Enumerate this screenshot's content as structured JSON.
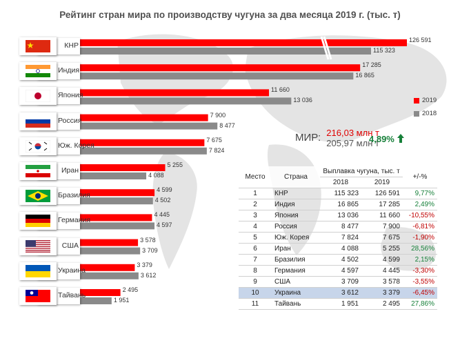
{
  "title": "Рейтинг стран мира по производству чугуна за два месяца 2019 г. (тыс. т)",
  "colors": {
    "bar2019": "#ff0000",
    "bar2018": "#8a8a8a",
    "positive": "#17803a",
    "negative": "#c00000",
    "highlight_row": "#c7d5ea"
  },
  "chart_data": {
    "type": "bar",
    "orientation": "horizontal",
    "categories": [
      "КНР",
      "Индия",
      "Япония",
      "Россия",
      "Юж. Корея",
      "Иран",
      "Бразилия",
      "Германия",
      "США",
      "Украина",
      "Тайвань"
    ],
    "series": [
      {
        "name": "2019",
        "values": [
          126591,
          17285,
          11660,
          7900,
          7675,
          5255,
          4599,
          4445,
          3578,
          3379,
          2495
        ],
        "labels": [
          "126 591",
          "17 285",
          "11 660",
          "7 900",
          "7 675",
          "5 255",
          "4 599",
          "4 445",
          "3 578",
          "3 379",
          "2 495"
        ]
      },
      {
        "name": "2018",
        "values": [
          115323,
          16865,
          13036,
          8477,
          7824,
          4088,
          4502,
          4597,
          3709,
          3612,
          1951
        ],
        "labels": [
          "115 323",
          "16 865",
          "13 036",
          "8 477",
          "7 824",
          "4 088",
          "4 502",
          "4 597",
          "3 709",
          "3 612",
          "1 951"
        ]
      }
    ],
    "legend": {
      "position": "right",
      "items": [
        "2019",
        "2018"
      ]
    },
    "broken_axis_first_bar": true
  },
  "flags": [
    "china-flag-icon",
    "india-flag-icon",
    "japan-flag-icon",
    "russia-flag-icon",
    "south-korea-flag-icon",
    "iran-flag-icon",
    "brazil-flag-icon",
    "germany-flag-icon",
    "usa-flag-icon",
    "ukraine-flag-icon",
    "taiwan-flag-icon"
  ],
  "world": {
    "label": "МИР:",
    "v2019": "216,03 млн т",
    "v2018": "205,97 млн т",
    "change": "4,89%"
  },
  "table": {
    "headers": [
      "Место",
      "Страна",
      "Выплавка чугуна, тыс. т",
      "+/-%"
    ],
    "subheaders": [
      "2018",
      "2019"
    ],
    "rows": [
      [
        "1",
        "КНР",
        "115 323",
        "126 591",
        "9,77%"
      ],
      [
        "2",
        "Индия",
        "16 865",
        "17 285",
        "2,49%"
      ],
      [
        "3",
        "Япония",
        "13 036",
        "11 660",
        "-10,55%"
      ],
      [
        "4",
        "Россия",
        "8 477",
        "7 900",
        "-6,81%"
      ],
      [
        "5",
        "Юж. Корея",
        "7 824",
        "7 675",
        "-1,90%"
      ],
      [
        "6",
        "Иран",
        "4 088",
        "5 255",
        "28,56%"
      ],
      [
        "7",
        "Бразилия",
        "4 502",
        "4 599",
        "2,15%"
      ],
      [
        "8",
        "Германия",
        "4 597",
        "4 445",
        "-3,30%"
      ],
      [
        "9",
        "США",
        "3 709",
        "3 578",
        "-3,55%"
      ],
      [
        "10",
        "Украина",
        "3 612",
        "3 379",
        "-6,45%"
      ],
      [
        "11",
        "Тайвань",
        "1 951",
        "2 495",
        "27,86%"
      ]
    ],
    "highlight_row": 9
  }
}
